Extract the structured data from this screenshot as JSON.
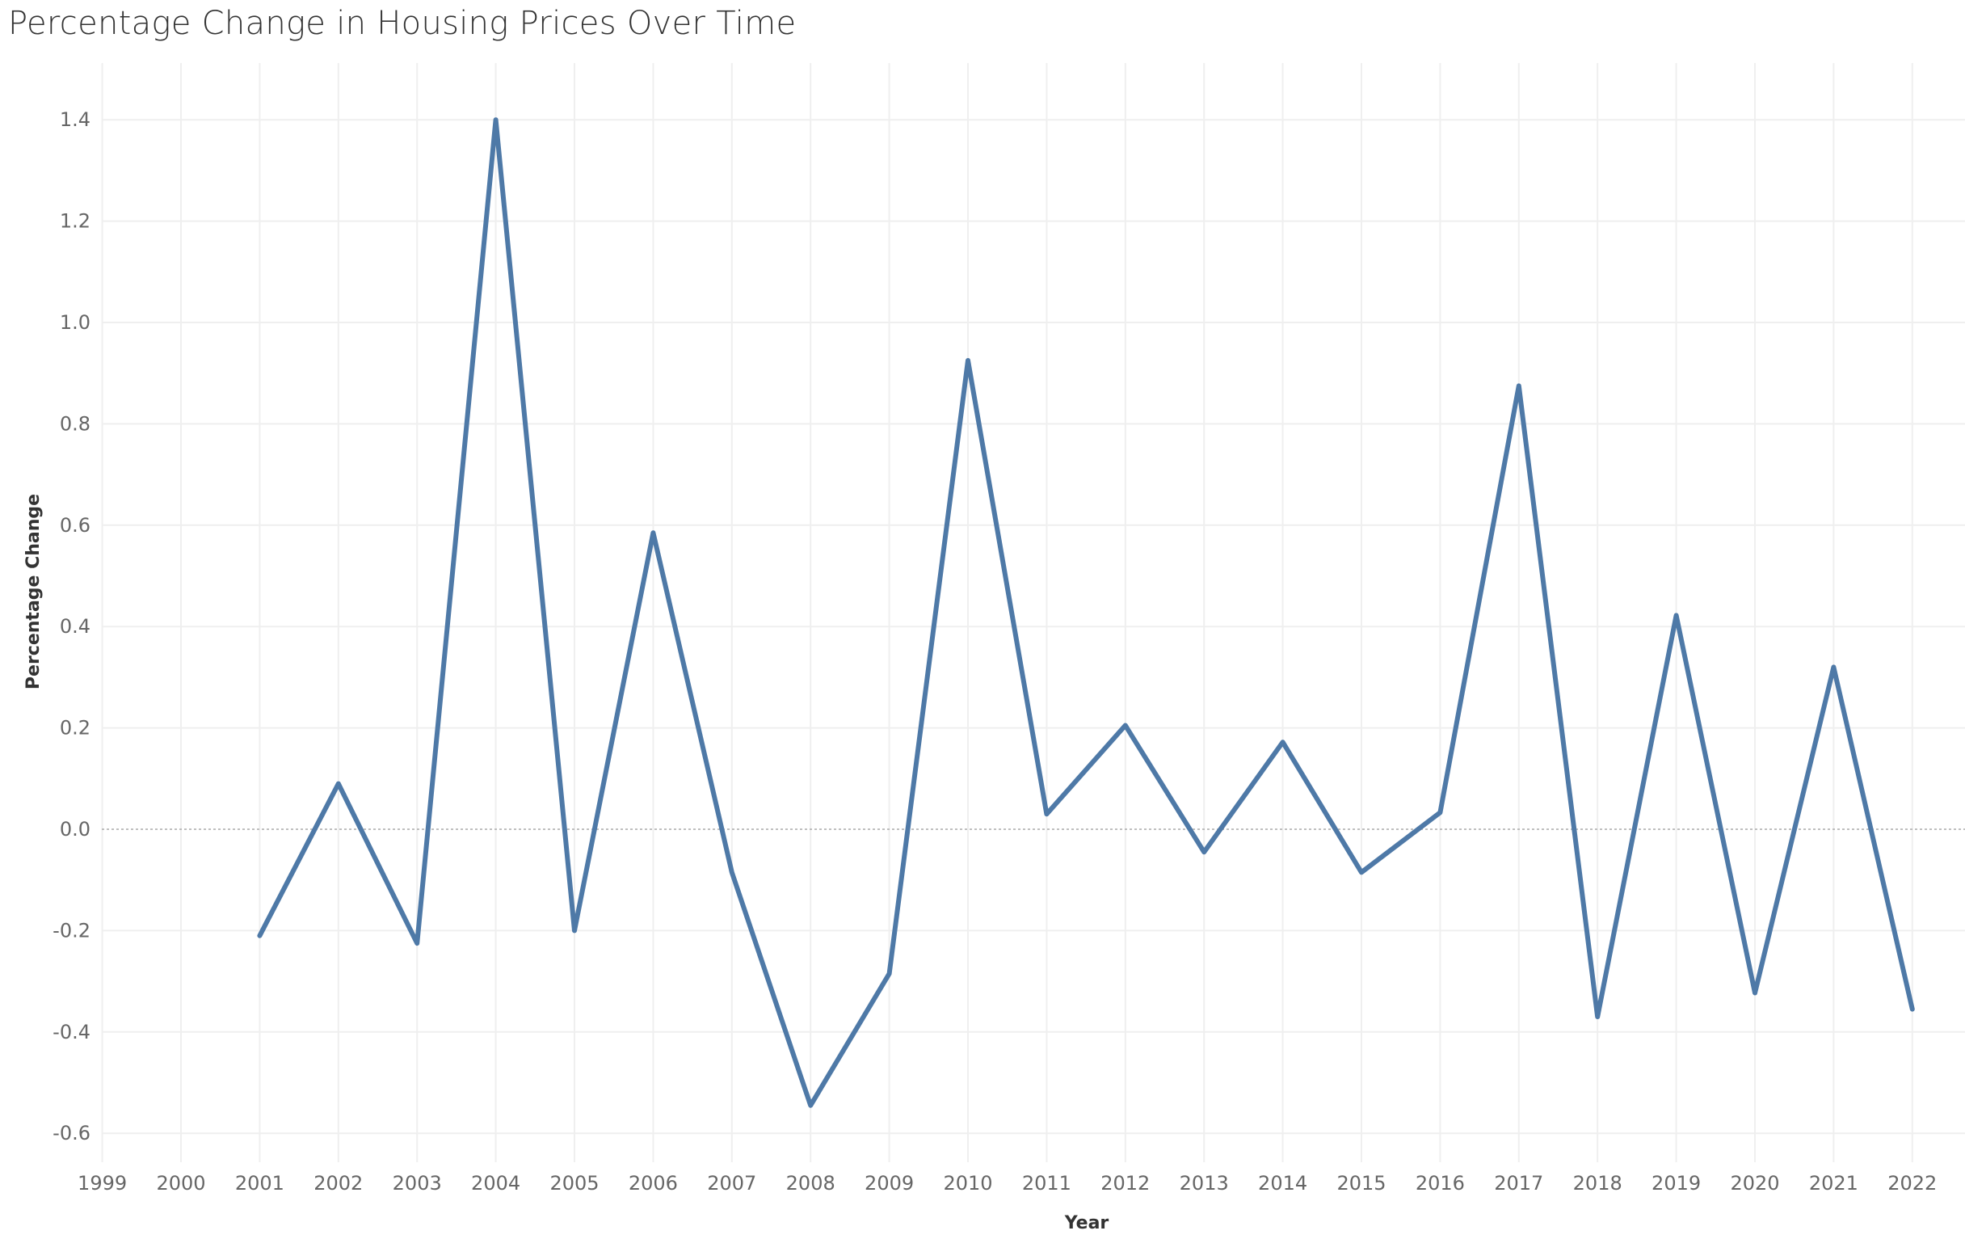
{
  "chart_data": {
    "type": "line",
    "title": "Percentage Change in Housing Prices Over Time",
    "xlabel": "Year",
    "ylabel": "Percentage Change",
    "x_ticks": [
      "1999",
      "2000",
      "2001",
      "2002",
      "2003",
      "2004",
      "2005",
      "2006",
      "2007",
      "2008",
      "2009",
      "2010",
      "2011",
      "2012",
      "2013",
      "2014",
      "2015",
      "2016",
      "2017",
      "2018",
      "2019",
      "2020",
      "2021",
      "2022"
    ],
    "y_ticks": [
      "1.4",
      "1.2",
      "1.0",
      "0.8",
      "0.6",
      "0.4",
      "0.2",
      "0.0",
      "-0.2",
      "-0.4",
      "-0.6"
    ],
    "ylim": [
      -0.65,
      1.5
    ],
    "grid": true,
    "zero_line": true,
    "series": [
      {
        "color": "#4e79a7",
        "x": [
          2001,
          2002,
          2003,
          2004,
          2005,
          2006,
          2007,
          2008,
          2009,
          2010,
          2011,
          2012,
          2013,
          2014,
          2015,
          2016,
          2017,
          2018,
          2019,
          2020,
          2021,
          2022
        ],
        "values": [
          -0.21,
          0.09,
          -0.225,
          1.4,
          -0.2,
          0.585,
          -0.085,
          -0.545,
          -0.285,
          0.925,
          0.03,
          0.205,
          -0.045,
          0.172,
          -0.085,
          0.033,
          0.875,
          -0.37,
          0.422,
          -0.323,
          0.32,
          -0.355
        ]
      }
    ]
  }
}
